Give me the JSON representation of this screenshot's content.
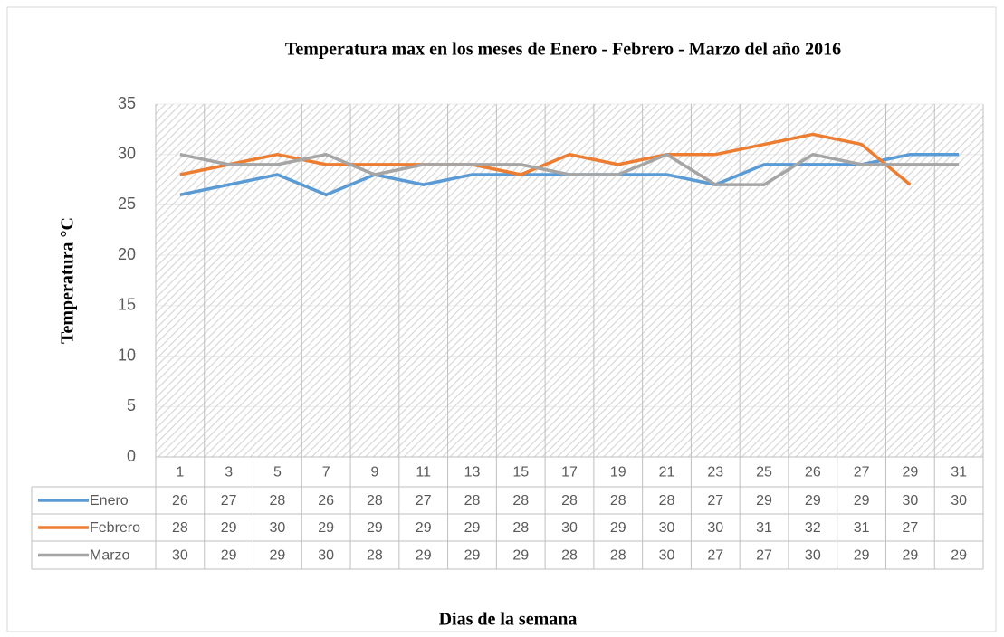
{
  "chart_data": {
    "type": "line",
    "title": "Temperatura max en los meses de Enero - Febrero - Marzo del año 2016",
    "y_label": "Temperatura °C",
    "x_label": "Dias de la semana",
    "categories": [
      "1",
      "3",
      "5",
      "7",
      "9",
      "11",
      "13",
      "15",
      "17",
      "19",
      "21",
      "23",
      "25",
      "26",
      "27",
      "29",
      "31"
    ],
    "series": [
      {
        "name": "Enero",
        "color": "#5b9bd5",
        "values": [
          26,
          27,
          28,
          26,
          28,
          27,
          28,
          28,
          28,
          28,
          28,
          27,
          29,
          29,
          29,
          30,
          30
        ]
      },
      {
        "name": "Febrero",
        "color": "#ed7d31",
        "values": [
          28,
          29,
          30,
          29,
          29,
          29,
          29,
          28,
          30,
          29,
          30,
          30,
          31,
          32,
          31,
          27,
          null
        ]
      },
      {
        "name": "Marzo",
        "color": "#a5a5a5",
        "values": [
          30,
          29,
          29,
          30,
          28,
          29,
          29,
          29,
          28,
          28,
          30,
          27,
          27,
          30,
          29,
          29,
          29
        ]
      }
    ],
    "ylim": [
      0,
      35
    ],
    "yticks": [
      0,
      5,
      10,
      15,
      20,
      25,
      30,
      35
    ],
    "grid": true
  }
}
